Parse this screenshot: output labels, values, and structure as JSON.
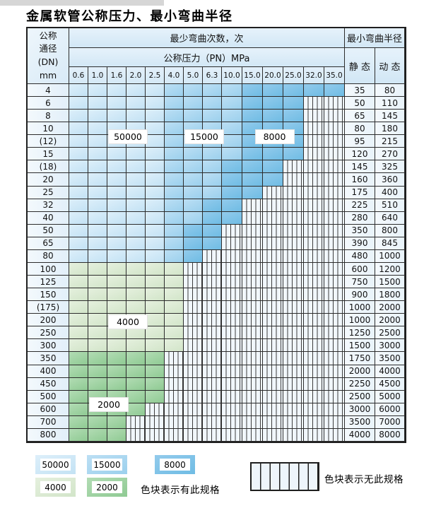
{
  "title": "金属软管公称压力、最小弯曲半径",
  "chart_data": {
    "type": "table",
    "title": "金属软管公称压力、最小弯曲半径",
    "corner_lines": [
      "公称",
      "通径",
      "(DN)",
      "mm"
    ],
    "bend_times_header": "最少弯曲次数，次",
    "pressure_header": "公称压力（PN）MPa",
    "radius_header": "最小弯曲半径",
    "static_header": "静 态",
    "dynamic_header": "动 态",
    "pressure_columns": [
      "0.6",
      "1.0",
      "1.6",
      "2.0",
      "2.5",
      "4.0",
      "5.0",
      "6.3",
      "10.0",
      "15.0",
      "20.0",
      "25.0",
      "32.0",
      "35.0"
    ],
    "zone_values": {
      "L": "50000",
      "M": "15000",
      "D": "8000",
      "G": "4000",
      "E": "2000",
      "X": "无此规格"
    },
    "zone_colors": {
      "L": {
        "light": "#ddeffa",
        "base": "#c3e2f4"
      },
      "M": {
        "light": "#bcdff4",
        "base": "#9bd0ed"
      },
      "D": {
        "light": "#93cbec",
        "base": "#6fbce4"
      },
      "G": {
        "light": "#e5f0de",
        "base": "#d2e5c9"
      },
      "E": {
        "light": "#b2dcb4",
        "base": "#8fca93"
      }
    },
    "rows": [
      {
        "dn": "4",
        "zones": "LLLLLMMMMDDDDD",
        "static": "35",
        "dynamic": "80"
      },
      {
        "dn": "6",
        "zones": "LLLLLMMMMDDDXX",
        "static": "50",
        "dynamic": "110"
      },
      {
        "dn": "8",
        "zones": "LLLLLMMMMDDDXX",
        "static": "65",
        "dynamic": "145"
      },
      {
        "dn": "10",
        "zones": "LLLLLMMMMDDDXX",
        "static": "80",
        "dynamic": "180"
      },
      {
        "dn": "(12)",
        "zones": "LLLLLMMMMDDDXX",
        "static": "95",
        "dynamic": "215"
      },
      {
        "dn": "15",
        "zones": "LLLLLMMMMDDDXX",
        "static": "120",
        "dynamic": "270"
      },
      {
        "dn": "(18)",
        "zones": "LLLLLMMMDDDXXX",
        "static": "145",
        "dynamic": "325"
      },
      {
        "dn": "20",
        "zones": "LLLLLMMMDDDXXX",
        "static": "160",
        "dynamic": "360"
      },
      {
        "dn": "25",
        "zones": "LLLLLMMMDDXXXX",
        "static": "175",
        "dynamic": "400"
      },
      {
        "dn": "32",
        "zones": "LLLLLMMDDXXXXX",
        "static": "225",
        "dynamic": "510"
      },
      {
        "dn": "40",
        "zones": "LLLLLMMDDXXXXX",
        "static": "280",
        "dynamic": "640"
      },
      {
        "dn": "50",
        "zones": "LLLLLMDDXXXXXX",
        "static": "350",
        "dynamic": "800"
      },
      {
        "dn": "65",
        "zones": "LLLLLMDDXXXXXX",
        "static": "390",
        "dynamic": "845"
      },
      {
        "dn": "80",
        "zones": "LLLLLMDXXXXXXX",
        "static": "480",
        "dynamic": "1000"
      },
      {
        "dn": "100",
        "zones": "GGGGGGXXXXXXXX",
        "static": "600",
        "dynamic": "1200"
      },
      {
        "dn": "125",
        "zones": "GGGGGGXXXXXXXX",
        "static": "750",
        "dynamic": "1500"
      },
      {
        "dn": "150",
        "zones": "GGGGGGXXXXXXXX",
        "static": "900",
        "dynamic": "1800"
      },
      {
        "dn": "(175)",
        "zones": "GGGGGGXXXXXXXX",
        "static": "1000",
        "dynamic": "2000"
      },
      {
        "dn": "200",
        "zones": "GGGGGGXXXXXXXX",
        "static": "1000",
        "dynamic": "2000"
      },
      {
        "dn": "250",
        "zones": "GGGGGGXXXXXXXX",
        "static": "1250",
        "dynamic": "2500"
      },
      {
        "dn": "300",
        "zones": "GGGGGGXXXXXXXX",
        "static": "1500",
        "dynamic": "3000"
      },
      {
        "dn": "350",
        "zones": "EEEEEXXXXXXXXX",
        "static": "1750",
        "dynamic": "3500"
      },
      {
        "dn": "400",
        "zones": "EEEEEXXXXXXXXX",
        "static": "2000",
        "dynamic": "4000"
      },
      {
        "dn": "450",
        "zones": "EEEEEXXXXXXXXX",
        "static": "2250",
        "dynamic": "4500"
      },
      {
        "dn": "500",
        "zones": "EEEEEXXXXXXXXX",
        "static": "2500",
        "dynamic": "5000"
      },
      {
        "dn": "600",
        "zones": "EEEEXXXXXXXXXX",
        "static": "3000",
        "dynamic": "6000"
      },
      {
        "dn": "700",
        "zones": "EEEXXXXXXXXXXX",
        "static": "3500",
        "dynamic": "7000"
      },
      {
        "dn": "800",
        "zones": "EEEXXXXXXXXXXX",
        "static": "4000",
        "dynamic": "8000"
      }
    ],
    "overlay_labels": [
      {
        "text": "50000",
        "cols": [
          2,
          3
        ],
        "rows": [
          3,
          4
        ]
      },
      {
        "text": "15000",
        "cols": [
          6,
          7
        ],
        "rows": [
          3,
          4
        ]
      },
      {
        "text": "8000",
        "cols": [
          10,
          10
        ],
        "rows": [
          3,
          4
        ]
      },
      {
        "text": "4000",
        "cols": [
          2,
          3
        ],
        "rows": [
          18,
          18
        ]
      },
      {
        "text": "2000",
        "cols": [
          1,
          2
        ],
        "rows": [
          24,
          25
        ]
      }
    ]
  },
  "legend": {
    "items": [
      {
        "label": "50000",
        "zone": "L"
      },
      {
        "label": "15000",
        "zone": "M"
      },
      {
        "label": "8000",
        "zone": "D"
      },
      {
        "label": "4000",
        "zone": "G"
      },
      {
        "label": "2000",
        "zone": "E"
      }
    ],
    "has_spec_note": "色块表示有此规格",
    "no_spec_note": "色块表示无此规格"
  }
}
